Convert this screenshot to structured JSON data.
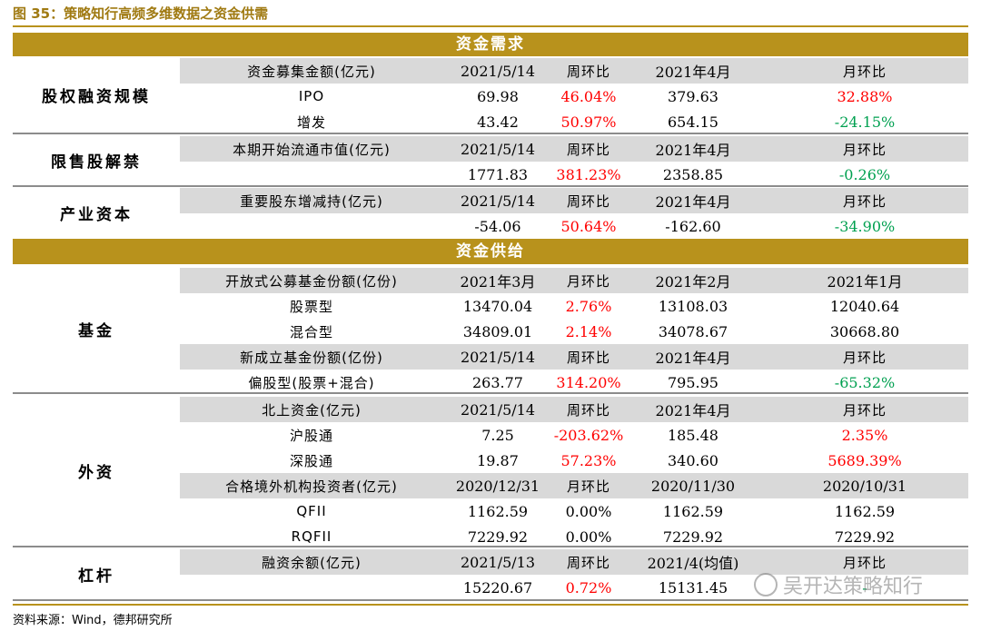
{
  "figure_title": "图 35：策略知行高频多维数据之资金供需",
  "source": "资料来源：Wind，德邦研究所",
  "watermark": "吴开达策略知行",
  "demand_header": "资金需求",
  "supply_header": "资金供给",
  "groups": {
    "equity": "股权融资规模",
    "unlock": "限售股解禁",
    "industry": "产业资本",
    "fund": "基金",
    "foreign": "外资",
    "leverage": "杠杆"
  },
  "rows": [
    {
      "id": "r1",
      "cells": [
        "资金募集金额(亿元)",
        "2021/5/14",
        "周环比",
        "2021年4月",
        "月环比"
      ],
      "gray": true,
      "hdr": true
    },
    {
      "id": "r2",
      "cells": [
        "IPO",
        "69.98",
        "46.04%",
        "379.63",
        "32.88%"
      ],
      "c2": "red",
      "c4": "red"
    },
    {
      "id": "r3",
      "cells": [
        "增发",
        "43.42",
        "50.97%",
        "654.15",
        "-24.15%"
      ],
      "c2": "red",
      "c4": "green"
    },
    {
      "id": "r4",
      "cells": [
        "本期开始流通市值(亿元)",
        "2021/5/14",
        "周环比",
        "2021年4月",
        "月环比"
      ],
      "gray": true,
      "hdr": true
    },
    {
      "id": "r5",
      "cells": [
        "",
        "1771.83",
        "381.23%",
        "2358.85",
        "-0.26%"
      ],
      "c2": "red",
      "c4": "green"
    },
    {
      "id": "r6",
      "cells": [
        "重要股东增减持(亿元)",
        "2021/5/14",
        "周环比",
        "2021年4月",
        "月环比"
      ],
      "gray": true,
      "hdr": true
    },
    {
      "id": "r7",
      "cells": [
        "",
        "-54.06",
        "50.64%",
        "-162.60",
        "-34.90%"
      ],
      "c2": "red",
      "c4": "green"
    },
    {
      "id": "r8",
      "cells": [
        "开放式公募基金份额(亿份)",
        "2021年3月",
        "月环比",
        "2021年2月",
        "2021年1月"
      ],
      "gray": true,
      "hdr": true
    },
    {
      "id": "r9",
      "cells": [
        "股票型",
        "13470.04",
        "2.76%",
        "13108.03",
        "12040.64"
      ],
      "c2": "red"
    },
    {
      "id": "r10",
      "cells": [
        "混合型",
        "34809.01",
        "2.14%",
        "34078.67",
        "30668.80"
      ],
      "c2": "red"
    },
    {
      "id": "r11",
      "cells": [
        "新成立基金份额(亿份)",
        "2021/5/14",
        "周环比",
        "2021年4月",
        "月环比"
      ],
      "gray": true,
      "hdr": true
    },
    {
      "id": "r12",
      "cells": [
        "偏股型(股票+混合)",
        "263.77",
        "314.20%",
        "795.95",
        "-65.32%"
      ],
      "c2": "red",
      "c4": "green"
    },
    {
      "id": "r13",
      "cells": [
        "北上资金(亿元)",
        "2021/5/14",
        "周环比",
        "2021年4月",
        "月环比"
      ],
      "gray": true,
      "hdr": true
    },
    {
      "id": "r14",
      "cells": [
        "沪股通",
        "7.25",
        "-203.62%",
        "185.48",
        "2.35%"
      ],
      "c2": "red",
      "c4": "red"
    },
    {
      "id": "r15",
      "cells": [
        "深股通",
        "19.87",
        "57.23%",
        "340.60",
        "5689.39%"
      ],
      "c2": "red",
      "c4": "red"
    },
    {
      "id": "r16",
      "cells": [
        "合格境外机构投资者(亿元)",
        "2020/12/31",
        "月环比",
        "2020/11/30",
        "2020/10/31"
      ],
      "gray": true,
      "hdr": true
    },
    {
      "id": "r17",
      "cells": [
        "QFII",
        "1162.59",
        "0.00%",
        "1162.59",
        "1162.59"
      ]
    },
    {
      "id": "r18",
      "cells": [
        "RQFII",
        "7229.92",
        "0.00%",
        "7229.92",
        "7229.92"
      ]
    },
    {
      "id": "r19",
      "cells": [
        "融资余额(亿元)",
        "2021/5/13",
        "周环比",
        "2021/4(均值)",
        "月环比"
      ],
      "gray": true,
      "hdr": true
    },
    {
      "id": "r20",
      "cells": [
        "",
        "15220.67",
        "0.72%",
        "15131.45",
        "-"
      ],
      "c2": "red",
      "c4": "green"
    }
  ]
}
